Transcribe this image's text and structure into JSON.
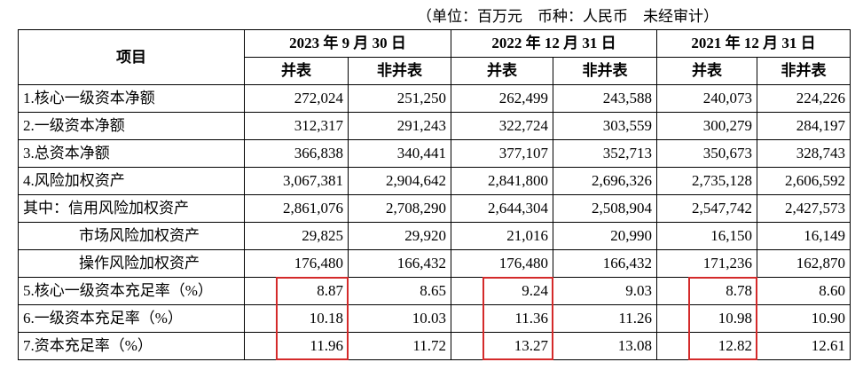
{
  "note": "（单位：百万元　币种：人民币　未经审计）",
  "table": {
    "header": {
      "item": "项目",
      "periods": [
        "2023 年 9 月 30 日",
        "2022 年 12 月 31 日",
        "2021 年 12 月 31 日"
      ],
      "subheaders": [
        "并表",
        "非并表",
        "并表",
        "非并表",
        "并表",
        "非并表"
      ]
    },
    "rows": [
      [
        "1.核心一级资本净额",
        "272,024",
        "251,250",
        "262,499",
        "243,588",
        "240,073",
        "224,226"
      ],
      [
        "2.一级资本净额",
        "312,317",
        "291,243",
        "322,724",
        "303,559",
        "300,279",
        "284,197"
      ],
      [
        "3.总资本净额",
        "366,838",
        "340,441",
        "377,107",
        "352,713",
        "350,673",
        "328,743"
      ],
      [
        "4.风险加权资产",
        "3,067,381",
        "2,904,642",
        "2,841,800",
        "2,696,326",
        "2,735,128",
        "2,606,592"
      ],
      [
        "其中：信用风险加权资产",
        "2,861,076",
        "2,708,290",
        "2,644,304",
        "2,508,904",
        "2,547,742",
        "2,427,573"
      ],
      [
        "市场风险加权资产",
        "29,825",
        "29,920",
        "21,016",
        "20,990",
        "16,150",
        "16,149"
      ],
      [
        "操作风险加权资产",
        "176,480",
        "166,432",
        "176,480",
        "166,432",
        "171,236",
        "162,870"
      ],
      [
        "5.核心一级资本充足率（%）",
        "8.87",
        "8.65",
        "9.24",
        "9.03",
        "8.78",
        "8.60"
      ],
      [
        "6.一级资本充足率（%）",
        "10.18",
        "10.03",
        "11.36",
        "11.26",
        "10.98",
        "10.90"
      ],
      [
        "7.资本充足率（%）",
        "11.96",
        "11.72",
        "13.27",
        "13.08",
        "12.82",
        "12.61"
      ]
    ]
  }
}
